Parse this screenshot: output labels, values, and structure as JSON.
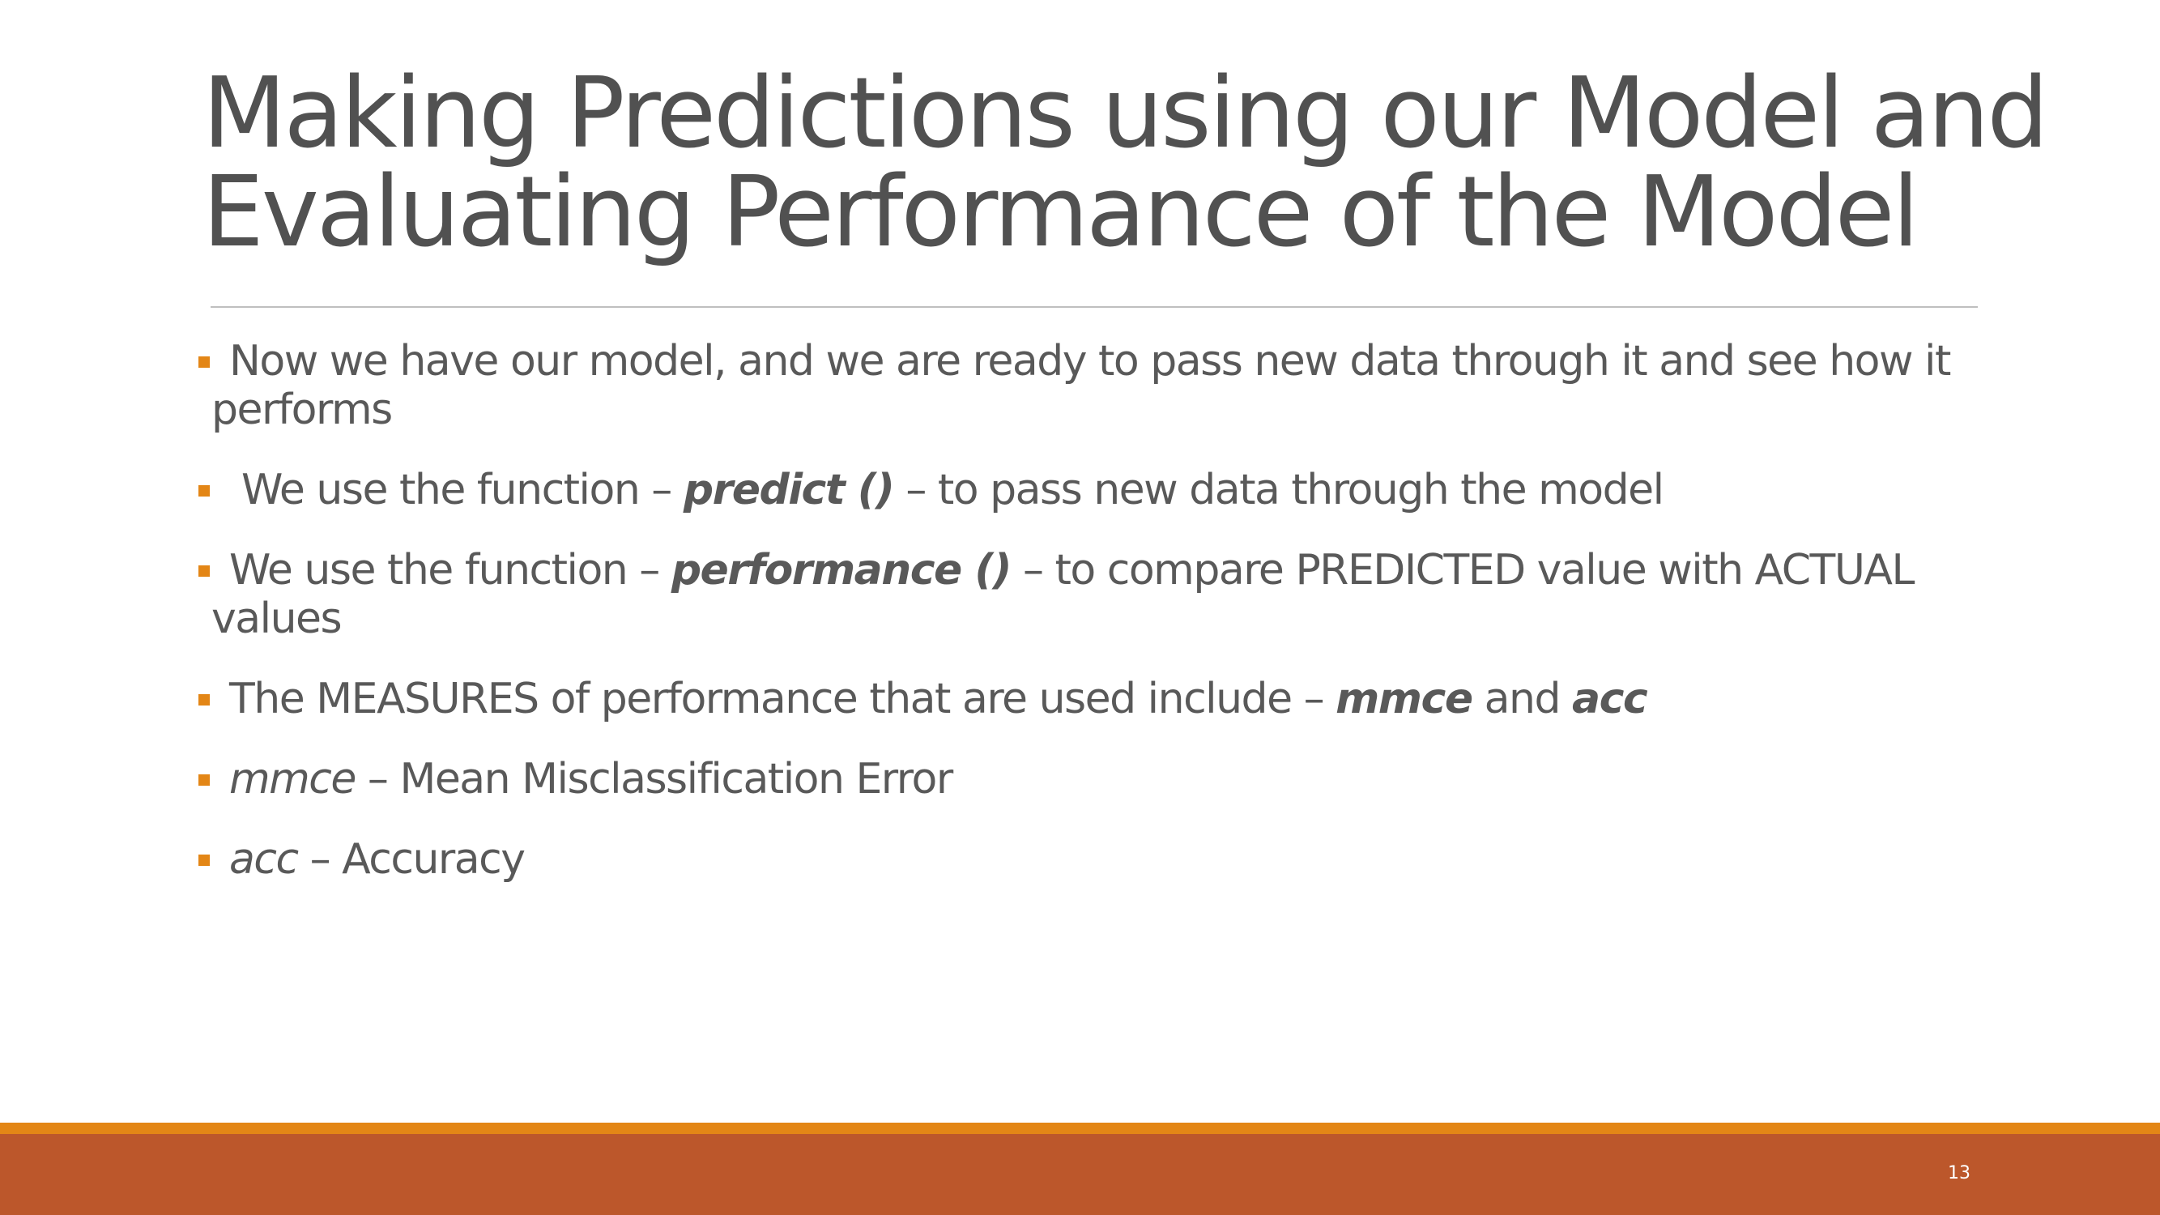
{
  "slide": {
    "title_line1": "Making Predictions using our Model and",
    "title_line2": "Evaluating Performance of the Model",
    "page_number": "13"
  },
  "bullets": [
    {
      "line1": "Now we have our model, and we are ready to pass new data through it and see how it",
      "line2": "performs"
    },
    {
      "pre": " We use the function – ",
      "em": "predict ()",
      "post": " – to pass new data through the model"
    },
    {
      "pre": "We use the function – ",
      "em": "performance ()",
      "post": " – to compare PREDICTED value with ACTUAL",
      "line2": "values"
    },
    {
      "pre": "The MEASURES of performance that are used include – ",
      "em1": "mmce",
      "mid": " and ",
      "em2": "acc"
    },
    {
      "term": "mmce",
      "rest": " – Mean Misclassification Error"
    },
    {
      "term": "acc",
      "rest": " – Accuracy"
    }
  ],
  "colors": {
    "bullet_marker": "#e38616",
    "footer_stripe": "#e38616",
    "footer_band": "#bc572b",
    "title_text": "#515151",
    "body_text": "#595959"
  }
}
